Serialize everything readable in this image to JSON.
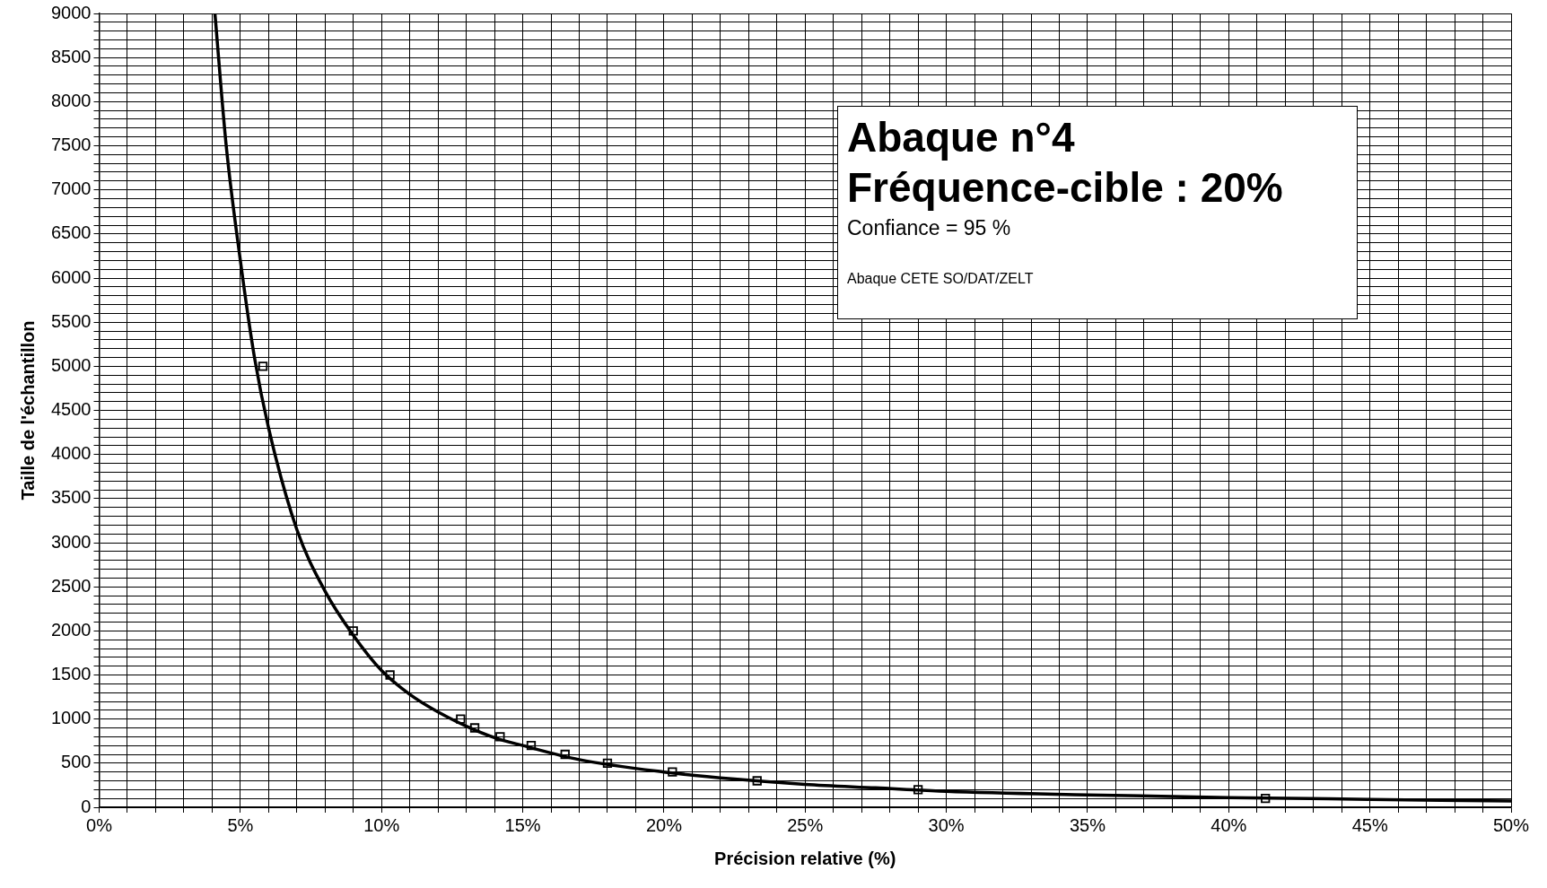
{
  "chart_data": {
    "type": "line",
    "title": "Abaque n°4",
    "subtitle": "Fréquence-cible : 20%",
    "annotations": [
      "Confiance = 95 %",
      "Abaque CETE SO/DAT/ZELT"
    ],
    "xlabel": "Précision relative (%)",
    "ylabel": "Taille de l'échantillon",
    "xlim": [
      0,
      50
    ],
    "ylim": [
      0,
      9000
    ],
    "xticks": [
      {
        "value": 0,
        "label": "0%"
      },
      {
        "value": 1,
        "label": null
      },
      {
        "value": 2,
        "label": null
      },
      {
        "value": 3,
        "label": null
      },
      {
        "value": 4,
        "label": null
      },
      {
        "value": 5,
        "label": "5%"
      },
      {
        "value": 6,
        "label": null
      },
      {
        "value": 7,
        "label": null
      },
      {
        "value": 8,
        "label": null
      },
      {
        "value": 9,
        "label": null
      },
      {
        "value": 10,
        "label": "10%"
      },
      {
        "value": 11,
        "label": null
      },
      {
        "value": 12,
        "label": null
      },
      {
        "value": 13,
        "label": null
      },
      {
        "value": 14,
        "label": null
      },
      {
        "value": 15,
        "label": "15%"
      },
      {
        "value": 16,
        "label": null
      },
      {
        "value": 17,
        "label": null
      },
      {
        "value": 18,
        "label": null
      },
      {
        "value": 19,
        "label": null
      },
      {
        "value": 20,
        "label": "20%"
      },
      {
        "value": 21,
        "label": null
      },
      {
        "value": 22,
        "label": null
      },
      {
        "value": 23,
        "label": null
      },
      {
        "value": 24,
        "label": null
      },
      {
        "value": 25,
        "label": "25%"
      },
      {
        "value": 26,
        "label": null
      },
      {
        "value": 27,
        "label": null
      },
      {
        "value": 28,
        "label": null
      },
      {
        "value": 29,
        "label": null
      },
      {
        "value": 30,
        "label": "30%"
      },
      {
        "value": 31,
        "label": null
      },
      {
        "value": 32,
        "label": null
      },
      {
        "value": 33,
        "label": null
      },
      {
        "value": 34,
        "label": null
      },
      {
        "value": 35,
        "label": "35%"
      },
      {
        "value": 36,
        "label": null
      },
      {
        "value": 37,
        "label": null
      },
      {
        "value": 38,
        "label": null
      },
      {
        "value": 39,
        "label": null
      },
      {
        "value": 40,
        "label": "40%"
      },
      {
        "value": 41,
        "label": null
      },
      {
        "value": 42,
        "label": null
      },
      {
        "value": 43,
        "label": null
      },
      {
        "value": 44,
        "label": null
      },
      {
        "value": 45,
        "label": "45%"
      },
      {
        "value": 46,
        "label": null
      },
      {
        "value": 47,
        "label": null
      },
      {
        "value": 48,
        "label": null
      },
      {
        "value": 49,
        "label": null
      },
      {
        "value": 50,
        "label": "50%"
      }
    ],
    "yticks": [
      0,
      {
        "value": 100,
        "label": null
      },
      {
        "value": 200,
        "label": null
      },
      {
        "value": 300,
        "label": null
      },
      {
        "value": 400,
        "label": null
      },
      500,
      {
        "value": 600,
        "label": null
      },
      {
        "value": 700,
        "label": null
      },
      {
        "value": 800,
        "label": null
      },
      {
        "value": 900,
        "label": null
      },
      1000,
      {
        "value": 1100,
        "label": null
      },
      {
        "value": 1200,
        "label": null
      },
      {
        "value": 1300,
        "label": null
      },
      {
        "value": 1400,
        "label": null
      },
      1500,
      {
        "value": 1600,
        "label": null
      },
      {
        "value": 1700,
        "label": null
      },
      {
        "value": 1800,
        "label": null
      },
      {
        "value": 1900,
        "label": null
      },
      2000,
      {
        "value": 2100,
        "label": null
      },
      {
        "value": 2200,
        "label": null
      },
      {
        "value": 2300,
        "label": null
      },
      {
        "value": 2400,
        "label": null
      },
      2500,
      {
        "value": 2600,
        "label": null
      },
      {
        "value": 2700,
        "label": null
      },
      {
        "value": 2800,
        "label": null
      },
      {
        "value": 2900,
        "label": null
      },
      3000,
      {
        "value": 3100,
        "label": null
      },
      {
        "value": 3200,
        "label": null
      },
      {
        "value": 3300,
        "label": null
      },
      {
        "value": 3400,
        "label": null
      },
      3500,
      {
        "value": 3600,
        "label": null
      },
      {
        "value": 3700,
        "label": null
      },
      {
        "value": 3800,
        "label": null
      },
      {
        "value": 3900,
        "label": null
      },
      4000,
      {
        "value": 4100,
        "label": null
      },
      {
        "value": 4200,
        "label": null
      },
      {
        "value": 4300,
        "label": null
      },
      {
        "value": 4400,
        "label": null
      },
      4500,
      {
        "value": 4600,
        "label": null
      },
      {
        "value": 4700,
        "label": null
      },
      {
        "value": 4800,
        "label": null
      },
      {
        "value": 4900,
        "label": null
      },
      5000,
      {
        "value": 5100,
        "label": null
      },
      {
        "value": 5200,
        "label": null
      },
      {
        "value": 5300,
        "label": null
      },
      {
        "value": 5400,
        "label": null
      },
      5500,
      {
        "value": 5600,
        "label": null
      },
      {
        "value": 5700,
        "label": null
      },
      {
        "value": 5800,
        "label": null
      },
      {
        "value": 5900,
        "label": null
      },
      6000,
      {
        "value": 6100,
        "label": null
      },
      {
        "value": 6200,
        "label": null
      },
      {
        "value": 6300,
        "label": null
      },
      {
        "value": 6400,
        "label": null
      },
      6500,
      {
        "value": 6600,
        "label": null
      },
      {
        "value": 6700,
        "label": null
      },
      {
        "value": 6800,
        "label": null
      },
      {
        "value": 6900,
        "label": null
      },
      7000,
      {
        "value": 7100,
        "label": null
      },
      {
        "value": 7200,
        "label": null
      },
      {
        "value": 7300,
        "label": null
      },
      {
        "value": 7400,
        "label": null
      },
      7500,
      {
        "value": 7600,
        "label": null
      },
      {
        "value": 7700,
        "label": null
      },
      {
        "value": 7800,
        "label": null
      },
      {
        "value": 7900,
        "label": null
      },
      8000,
      {
        "value": 8100,
        "label": null
      },
      {
        "value": 8200,
        "label": null
      },
      {
        "value": 8300,
        "label": null
      },
      {
        "value": 8400,
        "label": null
      },
      8500,
      {
        "value": 8600,
        "label": null
      },
      {
        "value": 8700,
        "label": null
      },
      {
        "value": 8800,
        "label": null
      },
      {
        "value": 8900,
        "label": null
      },
      9000
    ],
    "grid": true,
    "legend": false,
    "series": [
      {
        "type": "line",
        "color": "#000000",
        "marker": "none",
        "line_style": "solid",
        "x": [
          4.1,
          4.5,
          5,
          5.5,
          6,
          7,
          8,
          9,
          10,
          11,
          12,
          13,
          14,
          15,
          17,
          20,
          22.5,
          25,
          27.5,
          30,
          35,
          40,
          45,
          50
        ],
        "values": [
          9000,
          7500,
          6200,
          5100,
          4300,
          3150,
          2450,
          1950,
          1550,
          1280,
          1080,
          920,
          790,
          700,
          540,
          400,
          320,
          260,
          220,
          180,
          140,
          110,
          90,
          70
        ]
      },
      {
        "type": "scatter",
        "color": "#000000",
        "marker": "square",
        "x": [
          5.8,
          9.0,
          10.3,
          12.8,
          13.3,
          14.2,
          15.3,
          16.5,
          18.0,
          20.3,
          23.3,
          29.0,
          41.3
        ],
        "values": [
          5000,
          2000,
          1500,
          1000,
          900,
          800,
          700,
          600,
          500,
          400,
          300,
          200,
          100
        ]
      }
    ]
  }
}
